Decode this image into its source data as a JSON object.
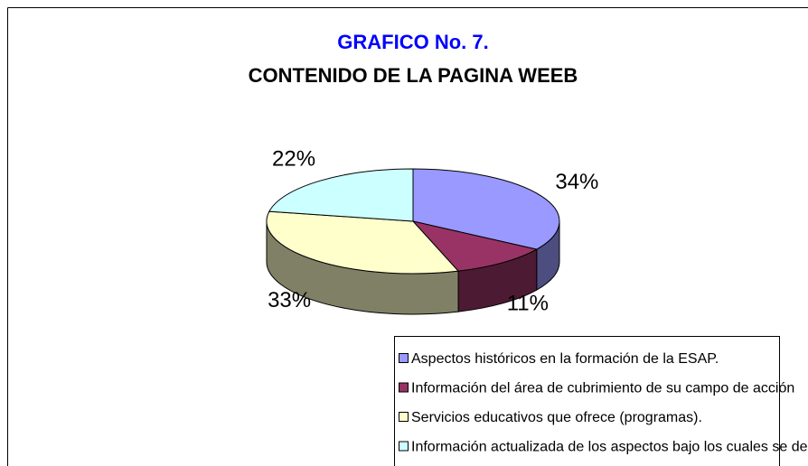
{
  "chart_data": {
    "type": "pie3d",
    "title": "GRAFICO No. 7.",
    "subtitle": "CONTENIDO DE LA PAGINA WEEB",
    "categories": [
      "Aspectos  históricos en la formación de la ESAP.",
      "Información del área de cubrimiento de su campo de acción",
      "Servicios educativos que ofrece (programas).",
      "Información actualizada de los aspectos bajo los cuales se desarrolla la institución."
    ],
    "values": [
      34,
      11,
      33,
      22
    ],
    "value_labels": [
      "34%",
      "11%",
      "33%",
      "22%"
    ],
    "colors": [
      "#9999ff",
      "#993366",
      "#ffffcc",
      "#ccffff"
    ],
    "legend": "bottom"
  }
}
